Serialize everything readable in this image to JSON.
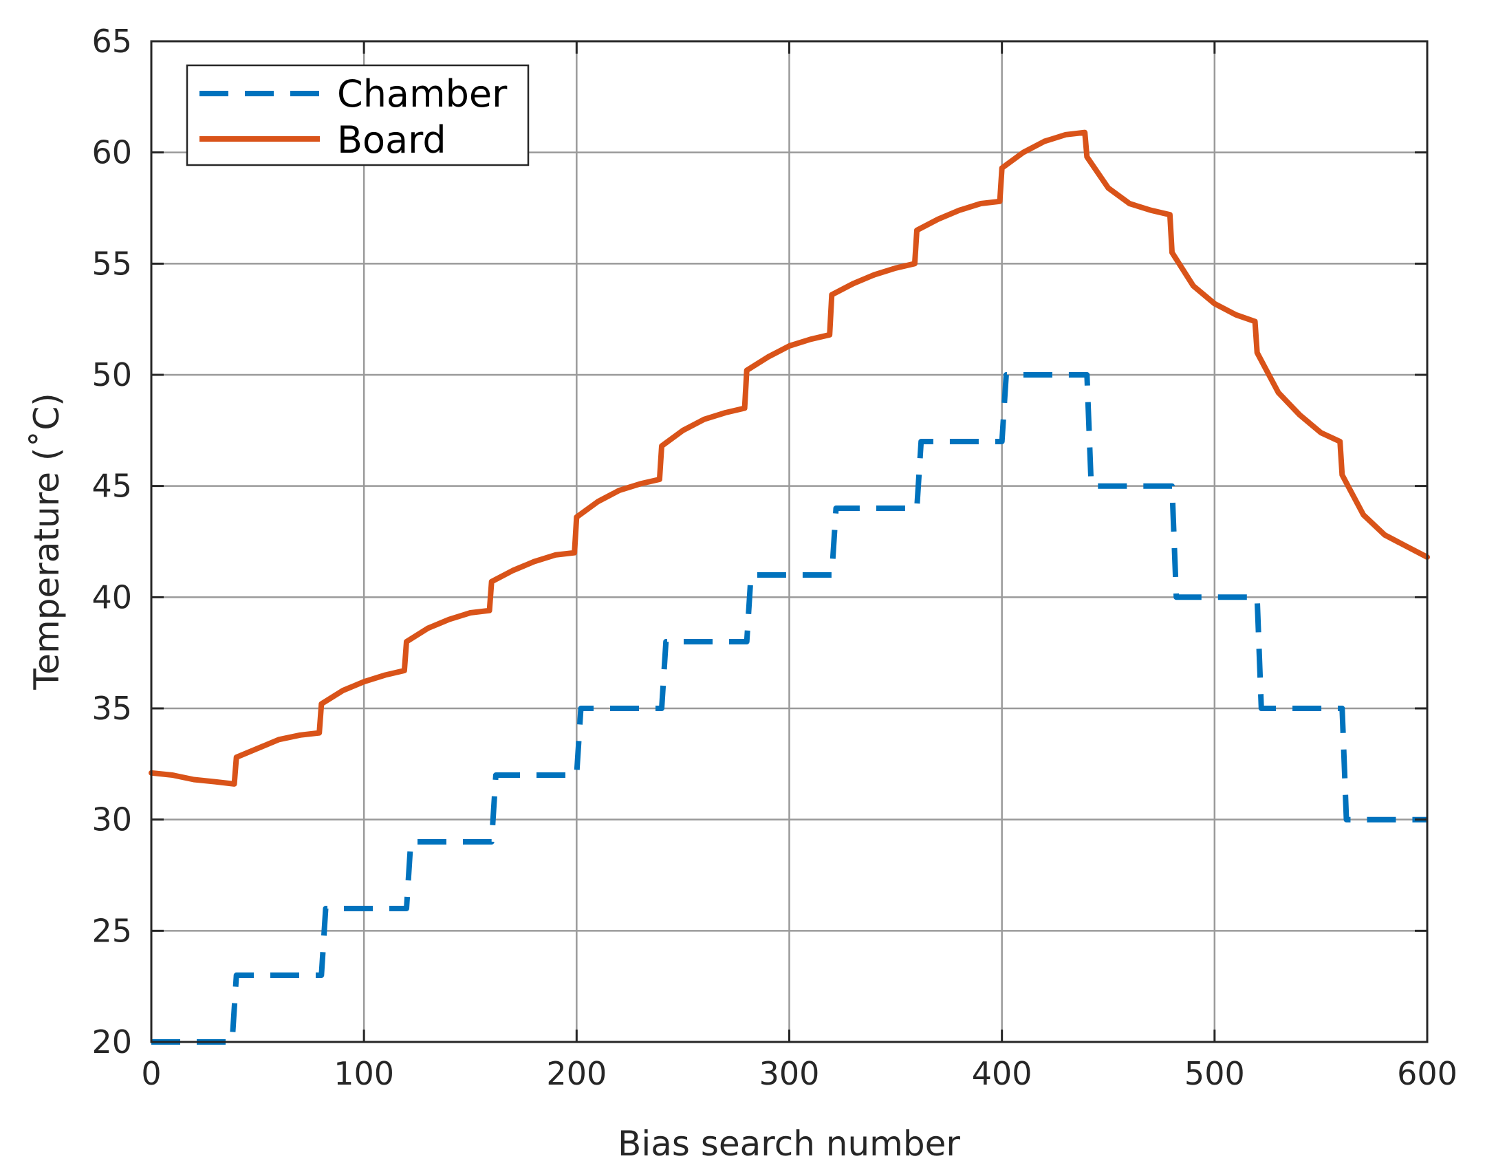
{
  "chart_data": {
    "type": "line",
    "title": "",
    "xlabel": "Bias search number",
    "ylabel": "Temperature (˚C)",
    "xlim": [
      0,
      600
    ],
    "ylim": [
      20,
      65
    ],
    "xticks": [
      0,
      100,
      200,
      300,
      400,
      500,
      600
    ],
    "yticks": [
      20,
      25,
      30,
      35,
      40,
      45,
      50,
      55,
      60,
      65
    ],
    "xtick_labels": [
      "0",
      "100",
      "200",
      "300",
      "400",
      "500",
      "600"
    ],
    "ytick_labels": [
      "20",
      "25",
      "30",
      "35",
      "40",
      "45",
      "50",
      "55",
      "60",
      "65"
    ],
    "grid": true,
    "legend_position": "top-left",
    "series": [
      {
        "name": "Chamber",
        "color": "#0072BD",
        "line_style": "dashed",
        "x": [
          0,
          38,
          40,
          80,
          82,
          120,
          122,
          160,
          162,
          200,
          202,
          240,
          242,
          280,
          282,
          320,
          322,
          360,
          362,
          400,
          402,
          440,
          442,
          480,
          482,
          520,
          522,
          560,
          562,
          600
        ],
        "y": [
          20,
          20,
          23,
          23,
          26,
          26,
          29,
          29,
          32,
          32,
          35,
          35,
          38,
          38,
          41,
          41,
          44,
          44,
          47,
          47,
          50,
          50,
          45,
          45,
          40,
          40,
          35,
          35,
          30,
          30
        ]
      },
      {
        "name": "Board",
        "color": "#D95319",
        "line_style": "solid",
        "x": [
          0,
          10,
          20,
          30,
          39,
          40,
          50,
          60,
          70,
          79,
          80,
          90,
          100,
          110,
          119,
          120,
          130,
          140,
          150,
          159,
          160,
          170,
          180,
          190,
          199,
          200,
          210,
          220,
          230,
          239,
          240,
          250,
          260,
          270,
          279,
          280,
          290,
          300,
          310,
          319,
          320,
          330,
          340,
          350,
          359,
          360,
          370,
          380,
          390,
          399,
          400,
          410,
          420,
          430,
          439,
          440,
          450,
          460,
          470,
          479,
          480,
          490,
          500,
          510,
          519,
          520,
          530,
          540,
          550,
          559,
          560,
          570,
          580,
          590,
          600
        ],
        "y": [
          32.1,
          32.0,
          31.8,
          31.7,
          31.6,
          32.8,
          33.2,
          33.6,
          33.8,
          33.9,
          35.2,
          35.8,
          36.2,
          36.5,
          36.7,
          38.0,
          38.6,
          39.0,
          39.3,
          39.4,
          40.7,
          41.2,
          41.6,
          41.9,
          42.0,
          43.6,
          44.3,
          44.8,
          45.1,
          45.3,
          46.8,
          47.5,
          48.0,
          48.3,
          48.5,
          50.2,
          50.8,
          51.3,
          51.6,
          51.8,
          53.6,
          54.1,
          54.5,
          54.8,
          55.0,
          56.5,
          57.0,
          57.4,
          57.7,
          57.8,
          59.3,
          60.0,
          60.5,
          60.8,
          60.9,
          59.8,
          58.4,
          57.7,
          57.4,
          57.2,
          55.5,
          54.0,
          53.2,
          52.7,
          52.4,
          51.0,
          49.2,
          48.2,
          47.4,
          47.0,
          45.5,
          43.7,
          42.8,
          42.3,
          41.8
        ]
      }
    ]
  }
}
